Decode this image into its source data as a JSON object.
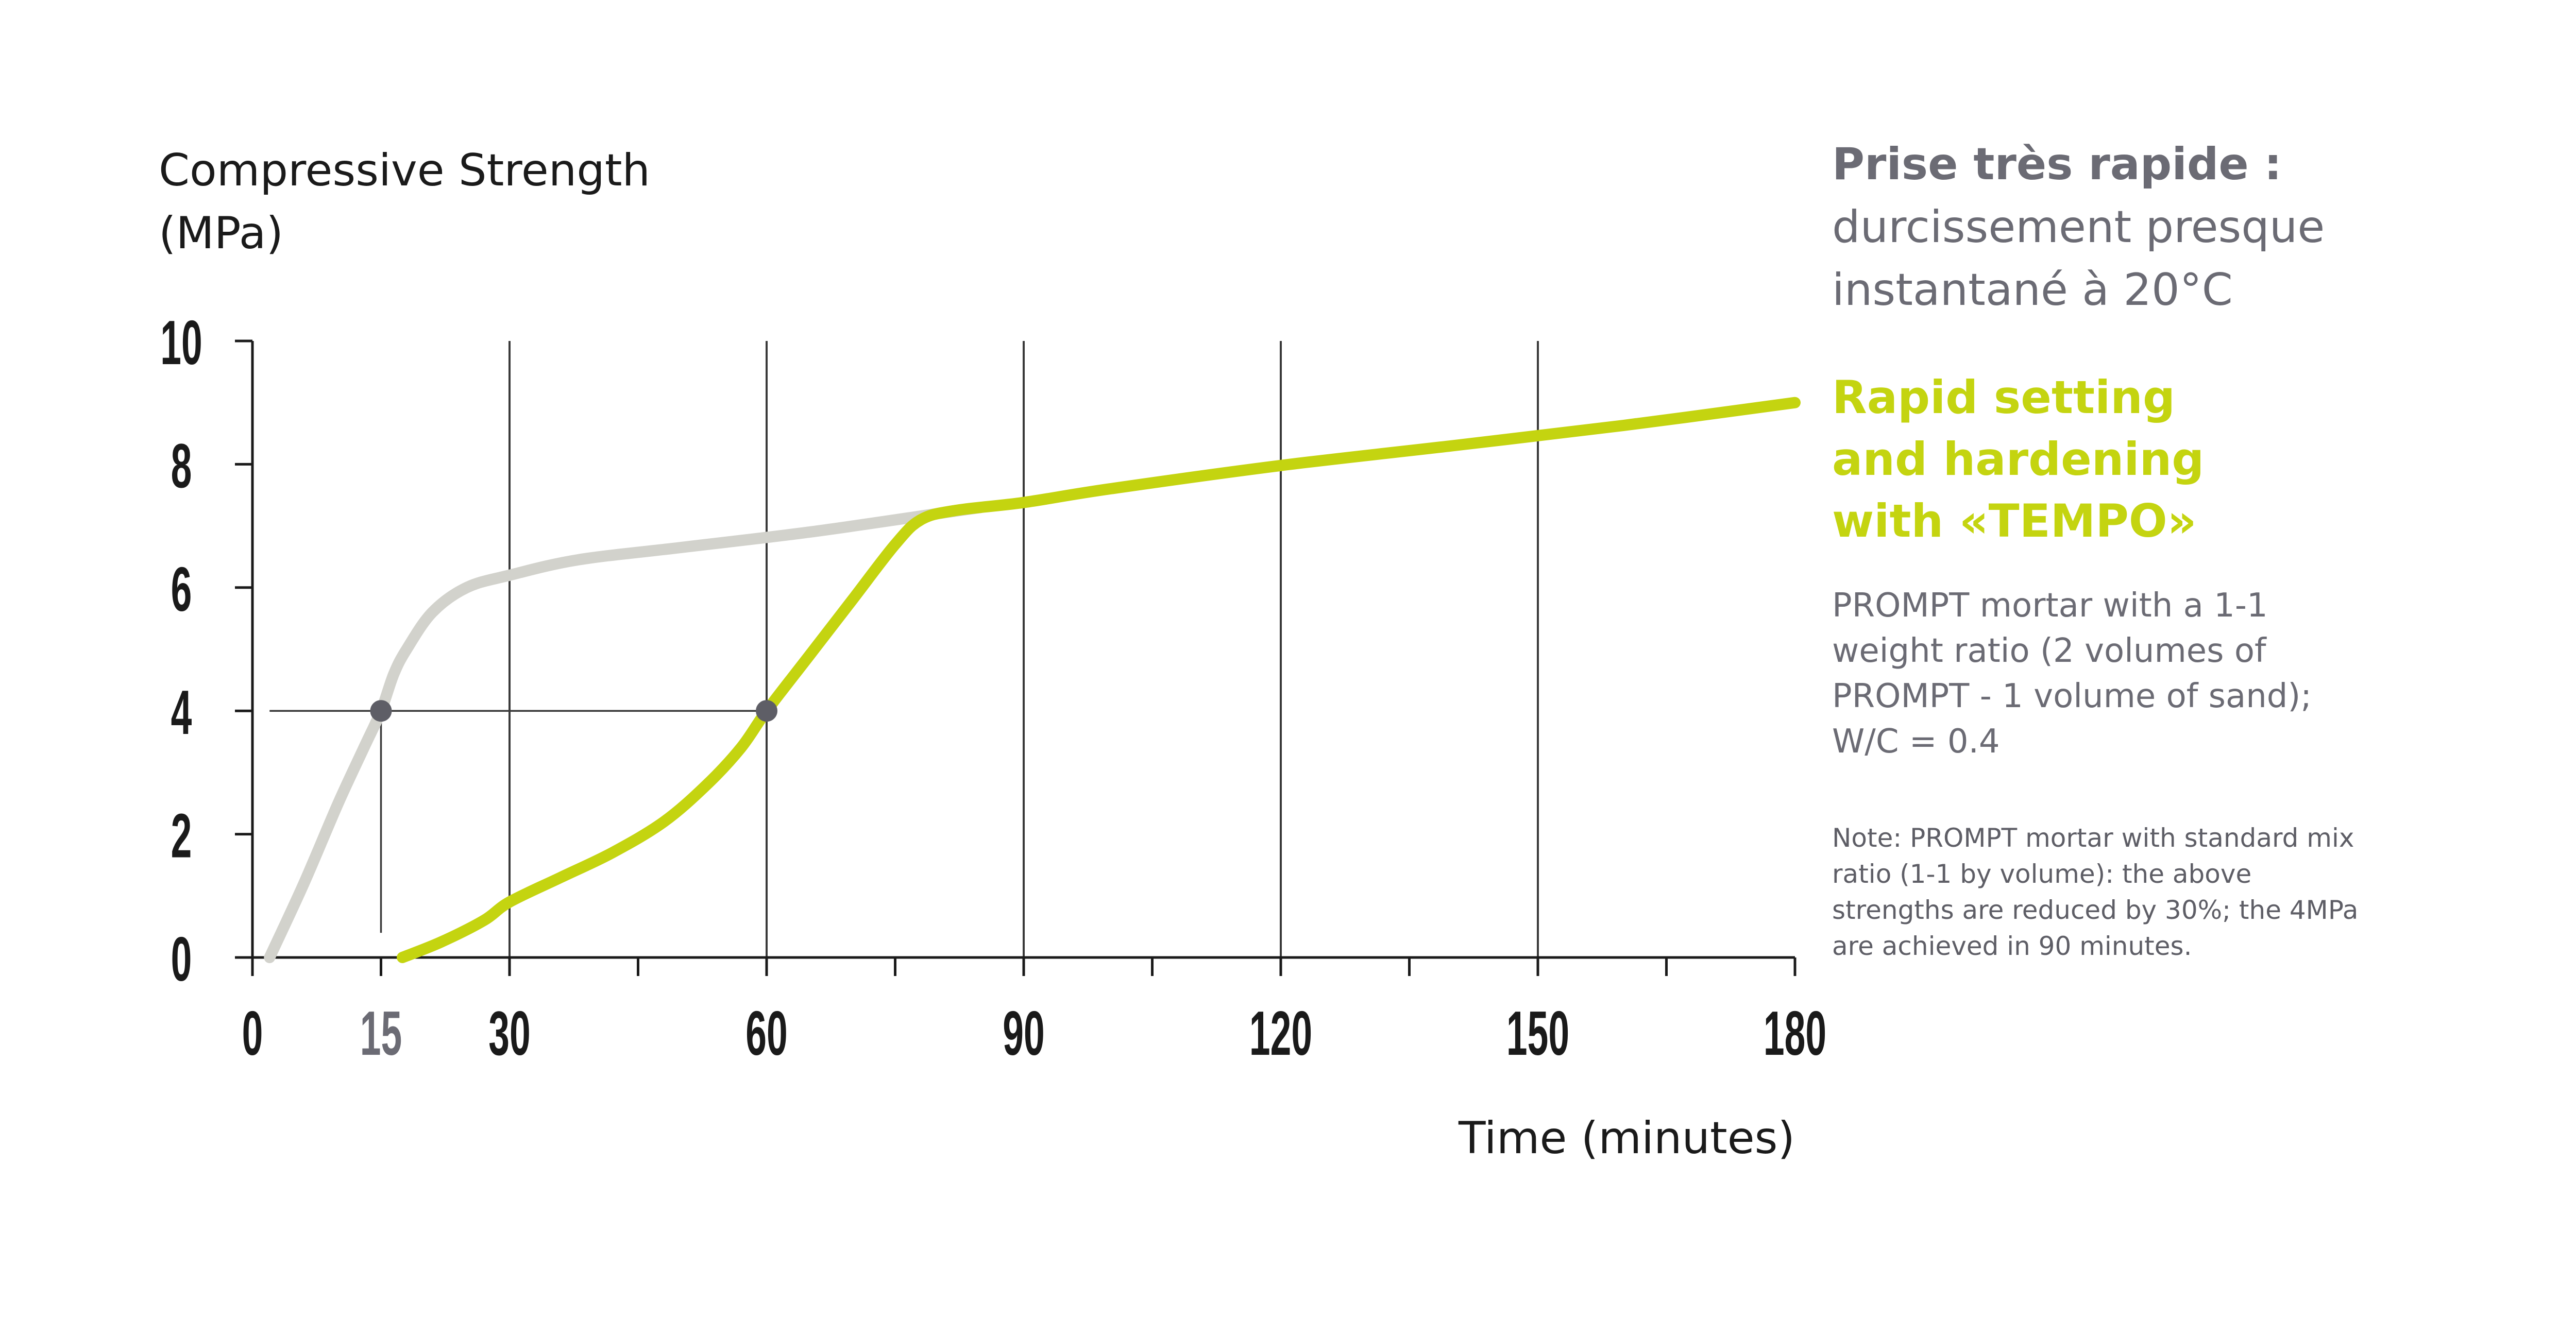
{
  "chart_data": {
    "type": "line",
    "ylabel_lines": [
      "Compressive Strength",
      "(MPa)"
    ],
    "xlabel": "Time (minutes)",
    "xlim": [
      0,
      180
    ],
    "ylim": [
      0,
      10
    ],
    "x_ticks": [
      "0",
      "15",
      "30",
      "60",
      "90",
      "120",
      "150",
      "180"
    ],
    "x_tick_values": [
      0,
      15,
      30,
      60,
      90,
      120,
      150,
      180
    ],
    "x_minor_ticks": [
      45,
      75,
      105,
      135,
      165
    ],
    "y_ticks": [
      "0",
      "2",
      "4",
      "6",
      "8",
      "10"
    ],
    "y_tick_values": [
      0,
      2,
      4,
      6,
      8,
      10
    ],
    "vertical_grid": [
      30,
      60,
      90,
      120,
      150
    ],
    "series": [
      {
        "color": "#d2d2cc",
        "points": [
          [
            2,
            0
          ],
          [
            6,
            1.2
          ],
          [
            10,
            2.5
          ],
          [
            13,
            3.4
          ],
          [
            15,
            4
          ],
          [
            16.5,
            4.6
          ],
          [
            18,
            5
          ],
          [
            21,
            5.6
          ],
          [
            25,
            6
          ],
          [
            30,
            6.2
          ],
          [
            38,
            6.45
          ],
          [
            50,
            6.65
          ],
          [
            65,
            6.9
          ],
          [
            80,
            7.2
          ],
          [
            85,
            7.3
          ]
        ]
      },
      {
        "color": "#c4d410",
        "points": [
          [
            17.5,
            0
          ],
          [
            22,
            0.25
          ],
          [
            27,
            0.6
          ],
          [
            30,
            0.9
          ],
          [
            36,
            1.3
          ],
          [
            42,
            1.7
          ],
          [
            48,
            2.2
          ],
          [
            53,
            2.8
          ],
          [
            57,
            3.4
          ],
          [
            60,
            4
          ],
          [
            65,
            4.9
          ],
          [
            70,
            5.8
          ],
          [
            75,
            6.7
          ],
          [
            78,
            7.1
          ],
          [
            82,
            7.25
          ],
          [
            90,
            7.38
          ],
          [
            100,
            7.6
          ],
          [
            120,
            7.98
          ],
          [
            140,
            8.3
          ],
          [
            160,
            8.63
          ],
          [
            180,
            9
          ]
        ]
      }
    ],
    "markers": [
      {
        "x": 15,
        "y": 4,
        "color": "#5e5e66"
      },
      {
        "x": 60,
        "y": 4,
        "color": "#5e5e66"
      }
    ],
    "reference_lines": {
      "y": 4,
      "from_x": 2,
      "to_x": 60,
      "drop_x": 15,
      "drop_to_y": 0.4
    },
    "highlight_tick": {
      "value": 15,
      "color": "#6b6b74"
    },
    "colors": {
      "axis": "#1a1a1a",
      "grid": "#3a3a3a",
      "gray_curve": "#d2d2cc",
      "green_curve": "#c4d410",
      "marker": "#5e5e66"
    }
  },
  "side": {
    "fr_bold": "Prise très rapide :",
    "fr_lines": [
      "durcissement presque",
      "instantané à 20°C"
    ],
    "en_lines": [
      "Rapid setting",
      "and hardening",
      "with «TEMPO»"
    ],
    "desc_lines": [
      "PROMPT mortar with a 1-1",
      "weight ratio (2 volumes of",
      "PROMPT - 1 volume of sand);",
      "W/C = 0.4"
    ],
    "note_lines": [
      "Note: PROMPT mortar with standard mix",
      "ratio (1-1 by volume): the above",
      "strengths are reduced by 30%; the 4MPa",
      "are achieved in 90 minutes."
    ]
  }
}
